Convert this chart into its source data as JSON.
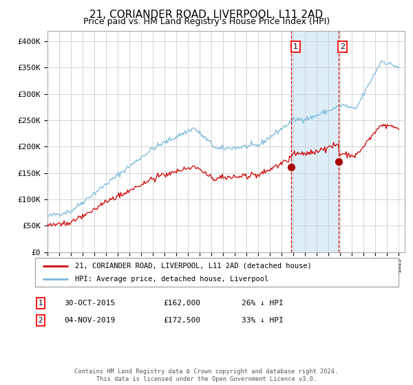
{
  "title": "21, CORIANDER ROAD, LIVERPOOL, L11 2AD",
  "subtitle": "Price paid vs. HM Land Registry's House Price Index (HPI)",
  "title_fontsize": 11,
  "subtitle_fontsize": 9,
  "hpi_color": "#7ab8d9",
  "price_color": "#cc0000",
  "marker_color": "#aa0000",
  "background_color": "#ffffff",
  "grid_color": "#cccccc",
  "highlight_color": "#ddeef8",
  "sale1_date": "30-OCT-2015",
  "sale1_price": 162000,
  "sale1_pct": "26% ↓ HPI",
  "sale2_date": "04-NOV-2019",
  "sale2_price": 172500,
  "sale2_pct": "33% ↓ HPI",
  "legend_label_red": "21, CORIANDER ROAD, LIVERPOOL, L11 2AD (detached house)",
  "legend_label_blue": "HPI: Average price, detached house, Liverpool",
  "footer": "Contains HM Land Registry data © Crown copyright and database right 2024.\nThis data is licensed under the Open Government Licence v3.0.",
  "ylim": [
    0,
    420000
  ],
  "yticks": [
    0,
    50000,
    100000,
    150000,
    200000,
    250000,
    300000,
    350000,
    400000
  ],
  "ytick_labels": [
    "£0",
    "£50K",
    "£100K",
    "£150K",
    "£200K",
    "£250K",
    "£300K",
    "£350K",
    "£400K"
  ],
  "sale1_x": 2015.83,
  "sale2_x": 2019.84
}
